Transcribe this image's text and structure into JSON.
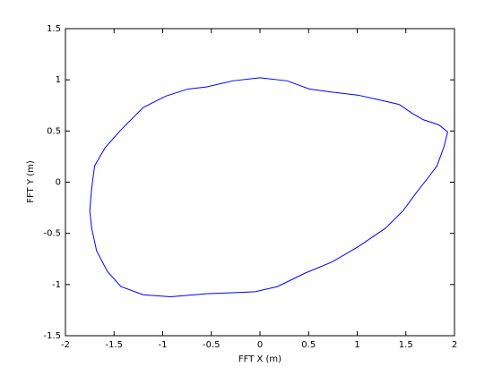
{
  "chart_data": {
    "type": "line",
    "xlabel": "FFT X (m)",
    "ylabel": "FFT Y (m)",
    "x": [
      0,
      0.28,
      0.51,
      0.74,
      1.01,
      1.2,
      1.43,
      1.57,
      1.68,
      1.84,
      1.93,
      1.89,
      1.82,
      1.75,
      1.61,
      1.47,
      1.29,
      1.01,
      0.74,
      0.46,
      0.18,
      -0.05,
      -0.28,
      -0.55,
      -0.92,
      -1.2,
      -1.43,
      -1.57,
      -1.68,
      -1.73,
      -1.75,
      -1.73,
      -1.7,
      -1.59,
      -1.43,
      -1.2,
      -0.97,
      -0.74,
      -0.55,
      -0.28,
      0
    ],
    "series": [
      {
        "color": "#0000ff",
        "values": [
          1.02,
          0.99,
          0.91,
          0.88,
          0.85,
          0.81,
          0.76,
          0.67,
          0.61,
          0.56,
          0.49,
          0.34,
          0.16,
          0.07,
          -0.1,
          -0.28,
          -0.45,
          -0.63,
          -0.78,
          -0.89,
          -1.02,
          -1.07,
          -1.08,
          -1.09,
          -1.12,
          -1.1,
          -1.02,
          -0.87,
          -0.67,
          -0.45,
          -0.28,
          -0.06,
          0.16,
          0.34,
          0.51,
          0.73,
          0.84,
          0.91,
          0.93,
          0.99,
          1.02
        ]
      }
    ],
    "xlim": [
      -2,
      2
    ],
    "xticks": [
      -2,
      -1.5,
      -1,
      -0.5,
      0,
      0.5,
      1,
      1.5,
      2
    ],
    "ylim": [
      -1.5,
      1.5
    ],
    "yticks": [
      -1.5,
      -1,
      -0.5,
      0,
      0.5,
      1,
      1.5
    ],
    "grid": false
  }
}
